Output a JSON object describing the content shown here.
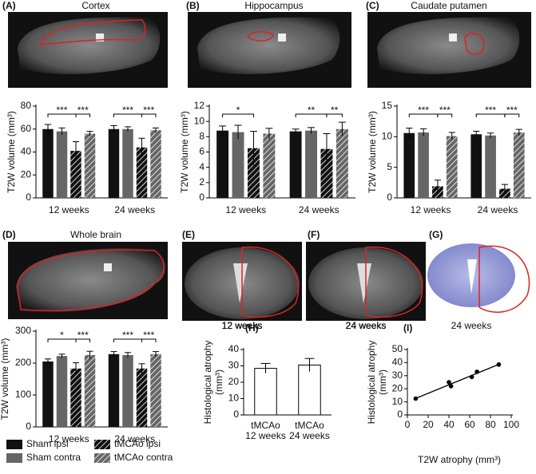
{
  "chart_data": [
    {
      "type": "bar",
      "panel": "(A)",
      "title": "Cortex",
      "ylabel": "T2W volume (mm³)",
      "categories": [
        "12 weeks",
        "24 weeks"
      ],
      "ylim": [
        0,
        80
      ],
      "yticks": [
        0,
        20,
        40,
        60,
        80
      ],
      "series": [
        {
          "name": "Sham ipsi",
          "color": "#111111",
          "values": [
            60,
            60
          ],
          "errors": [
            4,
            3
          ]
        },
        {
          "name": "Sham contra",
          "color": "#666666",
          "values": [
            58,
            60
          ],
          "errors": [
            3,
            2
          ]
        },
        {
          "name": "tMCAo ipsi",
          "color": "#111111",
          "pattern": "hatched",
          "values": [
            41,
            44
          ],
          "errors": [
            8,
            8
          ]
        },
        {
          "name": "tMCAo contra",
          "color": "#666666",
          "pattern": "hatched",
          "values": [
            56,
            59
          ],
          "errors": [
            2,
            2
          ]
        }
      ],
      "significance": [
        [
          "***",
          "***"
        ],
        [
          "***",
          "***"
        ]
      ]
    },
    {
      "type": "bar",
      "panel": "(B)",
      "title": "Hippocampus",
      "ylabel": "T2W volume (mm³)",
      "categories": [
        "12 weeks",
        "24 weeks"
      ],
      "ylim": [
        0,
        12
      ],
      "yticks": [
        0,
        2,
        4,
        6,
        8,
        10,
        12
      ],
      "series": [
        {
          "name": "Sham ipsi",
          "color": "#111111",
          "values": [
            8.8,
            8.7
          ],
          "errors": [
            0.6,
            0.3
          ]
        },
        {
          "name": "Sham contra",
          "color": "#666666",
          "values": [
            8.6,
            8.8
          ],
          "errors": [
            0.9,
            0.4
          ]
        },
        {
          "name": "tMCAo ipsi",
          "color": "#111111",
          "pattern": "hatched",
          "values": [
            6.5,
            6.4
          ],
          "errors": [
            2.2,
            2.0
          ]
        },
        {
          "name": "tMCAo contra",
          "color": "#666666",
          "pattern": "hatched",
          "values": [
            8.4,
            9.0
          ],
          "errors": [
            0.7,
            0.9
          ]
        }
      ],
      "significance": [
        [
          "*"
        ],
        [
          "**",
          "**"
        ]
      ]
    },
    {
      "type": "bar",
      "panel": "(C)",
      "title": "Caudate putamen",
      "ylabel": "T2W volume (mm³)",
      "categories": [
        "12 weeks",
        "24 weeks"
      ],
      "ylim": [
        0,
        15
      ],
      "yticks": [
        0,
        5,
        10,
        15
      ],
      "series": [
        {
          "name": "Sham ipsi",
          "color": "#111111",
          "values": [
            10.6,
            10.4
          ],
          "errors": [
            0.8,
            0.5
          ]
        },
        {
          "name": "Sham contra",
          "color": "#666666",
          "values": [
            10.7,
            10.2
          ],
          "errors": [
            0.6,
            0.4
          ]
        },
        {
          "name": "tMCAo ipsi",
          "color": "#111111",
          "pattern": "hatched",
          "values": [
            1.9,
            1.5
          ],
          "errors": [
            1.0,
            0.7
          ]
        },
        {
          "name": "tMCAo contra",
          "color": "#666666",
          "pattern": "hatched",
          "values": [
            10.1,
            10.7
          ],
          "errors": [
            0.6,
            0.5
          ]
        }
      ],
      "significance": [
        [
          "***",
          "***"
        ],
        [
          "***",
          "***"
        ]
      ]
    },
    {
      "type": "bar",
      "panel": "(D)",
      "title": "Whole brain",
      "ylabel": "T2W volume (mm³)",
      "categories": [
        "12 weeks",
        "24 weeks"
      ],
      "ylim": [
        0,
        300
      ],
      "yticks": [
        0,
        100,
        200,
        300
      ],
      "legend": "below",
      "series": [
        {
          "name": "Sham ipsi",
          "color": "#111111",
          "values": [
            205,
            228
          ],
          "errors": [
            8,
            8
          ]
        },
        {
          "name": "Sham contra",
          "color": "#666666",
          "values": [
            222,
            225
          ],
          "errors": [
            6,
            8
          ]
        },
        {
          "name": "tMCAo ipsi",
          "color": "#111111",
          "pattern": "hatched",
          "values": [
            183,
            183
          ],
          "errors": [
            18,
            15
          ]
        },
        {
          "name": "tMCAo contra",
          "color": "#666666",
          "pattern": "hatched",
          "values": [
            225,
            228
          ],
          "errors": [
            12,
            8
          ]
        }
      ],
      "significance": [
        [
          "*",
          "***"
        ],
        [
          "***",
          "***"
        ]
      ]
    },
    {
      "type": "bar",
      "panel": "(H)",
      "ylabel": [
        "Histological atrophy",
        "(mm³)"
      ],
      "categories": [
        [
          "tMCAo",
          "12 weeks"
        ],
        [
          "tMCAo",
          "24 weeks"
        ]
      ],
      "ylim": [
        0,
        40
      ],
      "yticks": [
        0,
        10,
        20,
        30,
        40
      ],
      "series": [
        {
          "color": "#ffffff",
          "edgecolor": "#000000",
          "values": [
            28.5,
            30.5
          ],
          "errors": [
            3,
            4
          ]
        }
      ]
    },
    {
      "type": "scatter",
      "panel": "(I)",
      "xlabel": "T2W atrophy (mm³)",
      "ylabel": [
        "Histological atrophy",
        "(mm³)"
      ],
      "x": [
        8,
        40,
        42,
        62,
        67,
        88
      ],
      "values": [
        12.5,
        25,
        22,
        29,
        33,
        38.5
      ],
      "color": "#000000",
      "trendline": true,
      "xlim": [
        0,
        100
      ],
      "xticks": [
        0,
        20,
        40,
        60,
        80,
        100
      ],
      "ylim": [
        0,
        50
      ],
      "yticks": [
        0,
        10,
        20,
        30,
        40,
        50
      ]
    }
  ],
  "images": [
    {
      "panel": "(E)",
      "caption": "12 weeks"
    },
    {
      "panel": "(F)",
      "caption": "24 weeks"
    },
    {
      "panel": "(G)",
      "caption": "24 weeks"
    }
  ]
}
